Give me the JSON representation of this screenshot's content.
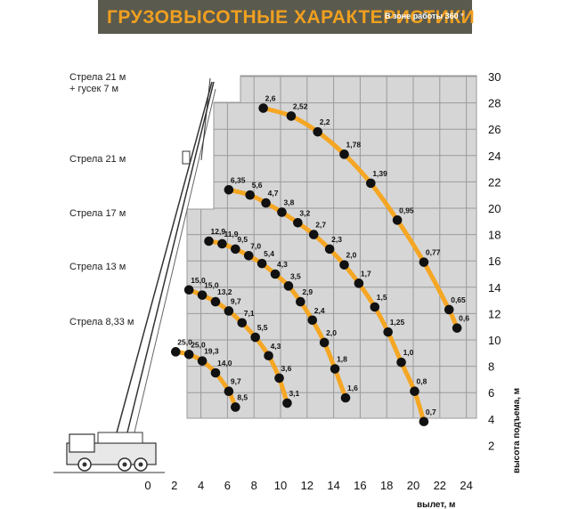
{
  "header": {
    "title": "ГРУЗОВЫСОТНЫЕ ХАРАКТЕРИСТИКИ",
    "subtitle": "В зоне работы 360 °"
  },
  "colors": {
    "title_bg": "#5a5a4e",
    "title_fg": "#f0a020",
    "curve": "#f5a623",
    "point": "#111111",
    "grid_fill": "#d6d6d6",
    "grid_line": "#9a9a9a"
  },
  "chart_data": {
    "type": "line",
    "xlabel": "вылет, м",
    "ylabel": "высота подъема, м",
    "xlim": [
      0,
      24
    ],
    "ylim": [
      0,
      30
    ],
    "x_ticks": [
      0,
      2,
      4,
      6,
      8,
      10,
      12,
      14,
      16,
      18,
      20,
      22,
      24
    ],
    "y_ticks": [
      2,
      4,
      6,
      8,
      10,
      12,
      14,
      16,
      18,
      20,
      22,
      24,
      26,
      28,
      30
    ],
    "booms": [
      {
        "name": "Стрела 21 м\n+ гусек 7 м",
        "points": [
          {
            "x": 8.7,
            "y": 27.6,
            "label": "2,6"
          },
          {
            "x": 10.8,
            "y": 27.0,
            "label": "2,52"
          },
          {
            "x": 12.8,
            "y": 25.8,
            "label": "2,2"
          },
          {
            "x": 14.8,
            "y": 24.1,
            "label": "1,78"
          },
          {
            "x": 16.8,
            "y": 21.9,
            "label": "1,39"
          },
          {
            "x": 18.8,
            "y": 19.1,
            "label": "0,95"
          },
          {
            "x": 20.8,
            "y": 15.9,
            "label": "0,77"
          },
          {
            "x": 22.7,
            "y": 12.3,
            "label": "0,65"
          },
          {
            "x": 23.3,
            "y": 10.9,
            "label": "0,6"
          }
        ]
      },
      {
        "name": "Стрела 21 м",
        "points": [
          {
            "x": 6.1,
            "y": 21.4,
            "label": "6,35"
          },
          {
            "x": 7.7,
            "y": 21.0,
            "label": "5,6"
          },
          {
            "x": 8.9,
            "y": 20.4,
            "label": "4,7"
          },
          {
            "x": 10.1,
            "y": 19.7,
            "label": "3,8"
          },
          {
            "x": 11.3,
            "y": 18.9,
            "label": "3,2"
          },
          {
            "x": 12.5,
            "y": 18.0,
            "label": "2,7"
          },
          {
            "x": 13.7,
            "y": 16.9,
            "label": "2,3"
          },
          {
            "x": 14.8,
            "y": 15.7,
            "label": "2,0"
          },
          {
            "x": 15.9,
            "y": 14.3,
            "label": "1,7"
          },
          {
            "x": 17.1,
            "y": 12.5,
            "label": "1,5"
          },
          {
            "x": 18.1,
            "y": 10.6,
            "label": "1,25"
          },
          {
            "x": 19.1,
            "y": 8.3,
            "label": "1,0"
          },
          {
            "x": 20.1,
            "y": 6.1,
            "label": "0,8"
          },
          {
            "x": 20.8,
            "y": 3.8,
            "label": "0,7"
          }
        ]
      },
      {
        "name": "Стрела 17 м",
        "points": [
          {
            "x": 4.6,
            "y": 17.5,
            "label": "12,9"
          },
          {
            "x": 5.6,
            "y": 17.3,
            "label": "11,9"
          },
          {
            "x": 6.6,
            "y": 16.9,
            "label": "9,5"
          },
          {
            "x": 7.6,
            "y": 16.4,
            "label": "7,0"
          },
          {
            "x": 8.6,
            "y": 15.8,
            "label": "5,4"
          },
          {
            "x": 9.6,
            "y": 15.0,
            "label": "4,3"
          },
          {
            "x": 10.6,
            "y": 14.1,
            "label": "3,5"
          },
          {
            "x": 11.5,
            "y": 12.9,
            "label": "2,9"
          },
          {
            "x": 12.4,
            "y": 11.5,
            "label": "2,4"
          },
          {
            "x": 13.3,
            "y": 9.8,
            "label": "2,0"
          },
          {
            "x": 14.1,
            "y": 7.8,
            "label": "1,8"
          },
          {
            "x": 14.9,
            "y": 5.6,
            "label": "1,6"
          }
        ]
      },
      {
        "name": "Стрела 13 м",
        "points": [
          {
            "x": 3.1,
            "y": 13.8,
            "label": "15,0"
          },
          {
            "x": 4.1,
            "y": 13.4,
            "label": "15,0"
          },
          {
            "x": 5.1,
            "y": 12.9,
            "label": "13,2"
          },
          {
            "x": 6.1,
            "y": 12.2,
            "label": "9,7"
          },
          {
            "x": 7.1,
            "y": 11.3,
            "label": "7,1"
          },
          {
            "x": 8.1,
            "y": 10.2,
            "label": "5,5"
          },
          {
            "x": 9.1,
            "y": 8.8,
            "label": "4,3"
          },
          {
            "x": 9.9,
            "y": 7.1,
            "label": "3,6"
          },
          {
            "x": 10.5,
            "y": 5.2,
            "label": "3,1"
          }
        ]
      },
      {
        "name": "Стрела 8,33 м",
        "points": [
          {
            "x": 2.1,
            "y": 9.1,
            "label": "25,0"
          },
          {
            "x": 3.1,
            "y": 8.9,
            "label": "25,0"
          },
          {
            "x": 4.1,
            "y": 8.4,
            "label": "19,3"
          },
          {
            "x": 5.1,
            "y": 7.5,
            "label": "14,0"
          },
          {
            "x": 6.1,
            "y": 6.1,
            "label": "9,7"
          },
          {
            "x": 6.6,
            "y": 4.9,
            "label": "8,5"
          }
        ]
      }
    ]
  }
}
